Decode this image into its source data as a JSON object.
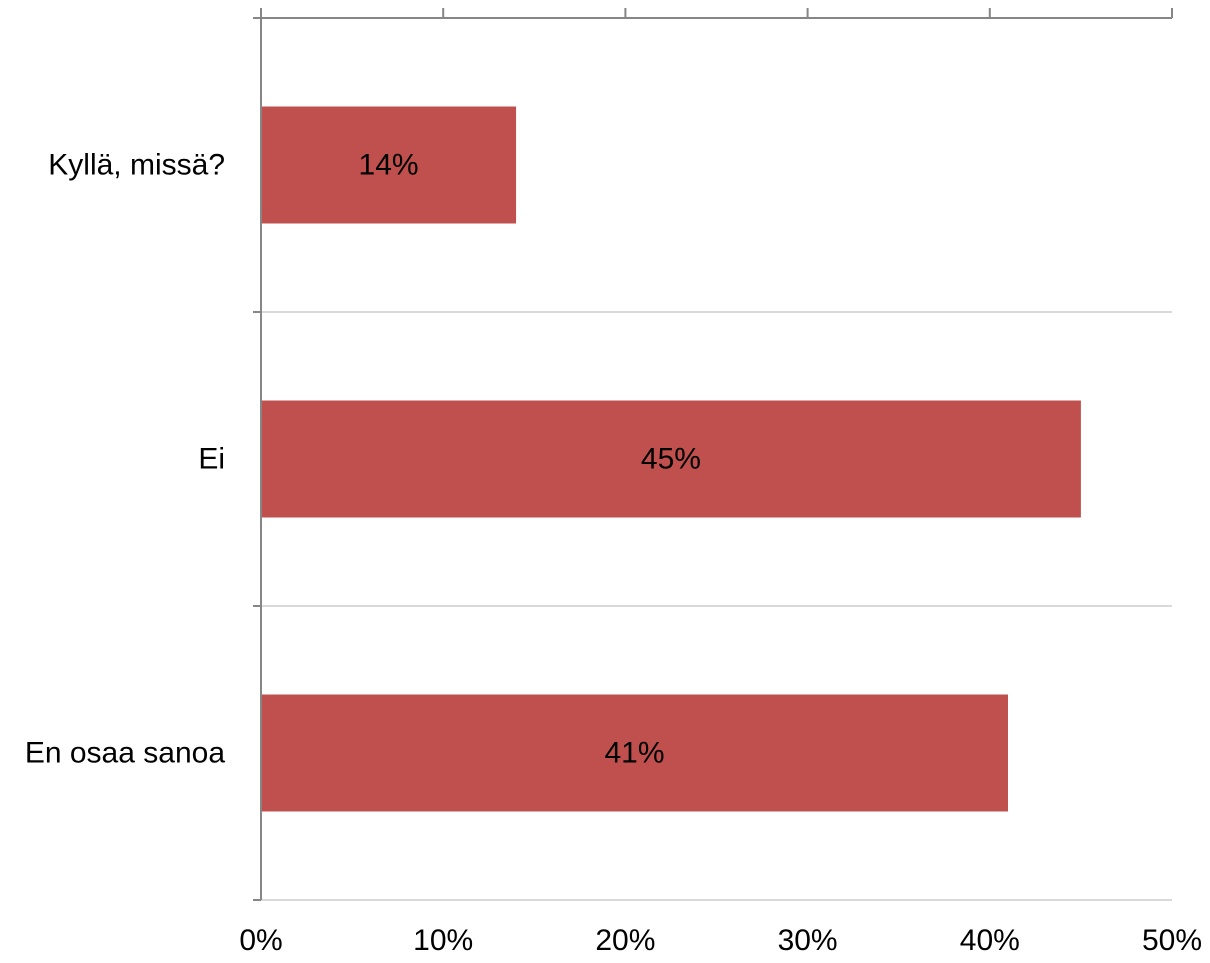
{
  "chart_data": {
    "type": "bar",
    "orientation": "horizontal",
    "categories": [
      "Kyllä, missä?",
      "Ei",
      "En osaa sanoa"
    ],
    "values": [
      14,
      45,
      41
    ],
    "data_labels": [
      "14%",
      "45%",
      "41%"
    ],
    "xlim": [
      0,
      50
    ],
    "xticks": [
      0,
      10,
      20,
      30,
      40,
      50
    ],
    "xtick_labels": [
      "0%",
      "10%",
      "20%",
      "30%",
      "40%",
      "50%"
    ],
    "title": "",
    "xlabel": "",
    "ylabel": "",
    "grid": true,
    "legend": "none",
    "bar_color": "#c0504d",
    "grid_color": "#d9d9d9",
    "axis_color": "#868686"
  }
}
